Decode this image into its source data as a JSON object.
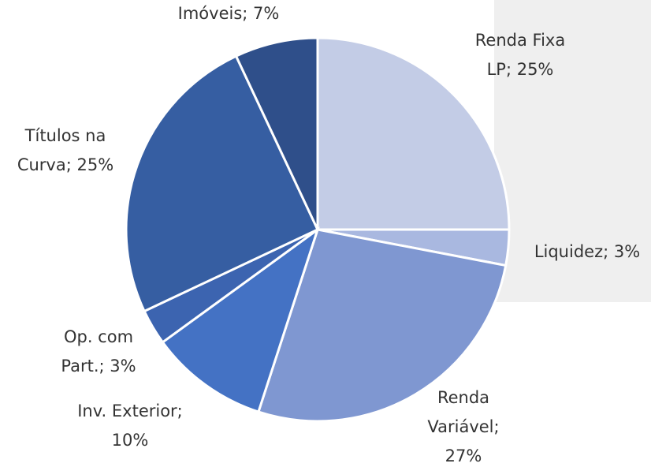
{
  "chart_data": {
    "type": "pie",
    "labels": [
      [
        "Renda Fixa",
        "LP; 25%"
      ],
      [
        "Liquidez; 3%"
      ],
      [
        "Renda",
        "Variável;",
        "27%"
      ],
      [
        "Inv. Exterior;",
        "10%"
      ],
      [
        "Op. com",
        "Part.; 3%"
      ],
      [
        "Títulos na",
        "Curva; 25%"
      ],
      [
        "Imóveis; 7%"
      ]
    ],
    "values": [
      25,
      3,
      27,
      10,
      3,
      25,
      7
    ],
    "colors": [
      "#c3cce6",
      "#a9b8e0",
      "#7f97d1",
      "#4472c4",
      "#3c64b0",
      "#365ea2",
      "#2f4f8a"
    ]
  }
}
